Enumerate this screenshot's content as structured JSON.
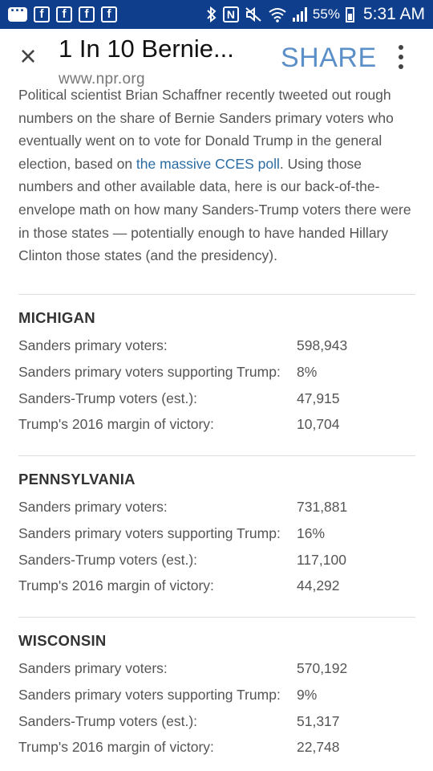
{
  "status_bar": {
    "icons": [
      "messenger-icon",
      "facebook-icon",
      "facebook-icon",
      "facebook-icon",
      "facebook-icon",
      "bluetooth-icon",
      "nfc-icon",
      "mute-icon",
      "wifi-icon",
      "signal-icon",
      "battery-icon"
    ],
    "fb_letter": "f",
    "nfc_letter": "N",
    "battery_percent": "55%",
    "time": "5:31 AM",
    "background": "#0f3f8c"
  },
  "header": {
    "close_label": "×",
    "title": "1 In 10 Bernie...",
    "url": "www.npr.org",
    "share_label": "SHARE",
    "share_color": "#5b8fc8"
  },
  "article": {
    "text_before_link": "Political scientist Brian Schaffner recently tweeted out rough numbers on the share of Bernie Sanders primary voters who eventually went on to vote for Donald Trump in the general election, based on ",
    "link_text": "the massive CCES poll",
    "text_after_link": ". Using those numbers and other available data, here is our back-of-the-envelope math on how many Sanders-Trump voters there were in those states — potentially enough to have handed Hillary Clinton those states (and the presidency).",
    "link_color": "#2b6ca3"
  },
  "states": [
    {
      "name": "MICHIGAN",
      "rows": [
        {
          "label": "Sanders primary voters:",
          "value": "598,943"
        },
        {
          "label": "Sanders primary voters supporting Trump:",
          "value": "8%"
        },
        {
          "label": "Sanders-Trump voters (est.):",
          "value": "47,915"
        },
        {
          "label": "Trump's 2016 margin of victory:",
          "value": "10,704"
        }
      ]
    },
    {
      "name": "PENNSYLVANIA",
      "rows": [
        {
          "label": "Sanders primary voters:",
          "value": "731,881"
        },
        {
          "label": "Sanders primary voters supporting Trump:",
          "value": "16%"
        },
        {
          "label": "Sanders-Trump voters (est.):",
          "value": "117,100"
        },
        {
          "label": "Trump's 2016 margin of victory:",
          "value": "44,292"
        }
      ]
    },
    {
      "name": "WISCONSIN",
      "rows": [
        {
          "label": "Sanders primary voters:",
          "value": "570,192"
        },
        {
          "label": "Sanders primary voters supporting Trump:",
          "value": "9%"
        },
        {
          "label": "Sanders-Trump voters (est.):",
          "value": "51,317"
        },
        {
          "label": "Trump's 2016 margin of victory:",
          "value": "22,748"
        }
      ]
    }
  ]
}
